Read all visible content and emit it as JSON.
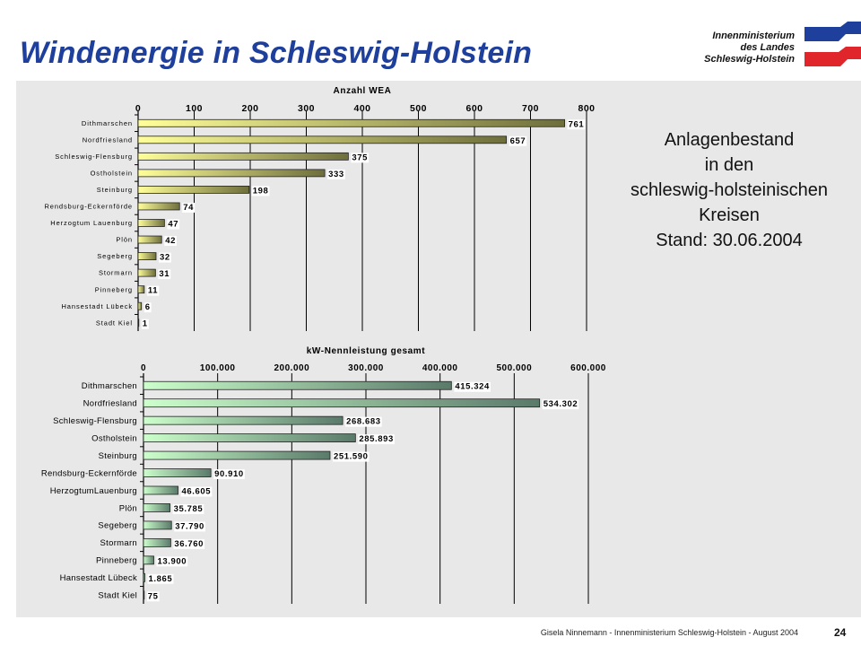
{
  "slide": {
    "title": "Windenergie in Schleswig-Holstein",
    "org_line1": "Innenministerium",
    "org_line2": "des Landes",
    "org_line3": "Schleswig-Holstein",
    "side_line1": "Anlagenbestand",
    "side_line2": "in den",
    "side_line3": "schleswig-holsteinischen",
    "side_line4": "Kreisen",
    "side_line5": "Stand: 30.06.2004",
    "footer": "Gisela Ninnemann - Innenministerium Schleswig-Holstein - August 2004",
    "page_number": "24",
    "logo_colors": {
      "blue": "#1f3f9c",
      "red": "#e0262a"
    }
  },
  "chart_data": [
    {
      "type": "bar",
      "orientation": "horizontal",
      "title": "Anzahl WEA",
      "categories": [
        "Dithmarschen",
        "Nordfriesland",
        "Schleswig-Flensburg",
        "Ostholstein",
        "Steinburg",
        "Rendsburg-Eckernförde",
        "Herzogtum Lauenburg",
        "Plön",
        "Segeberg",
        "Stormarn",
        "Pinneberg",
        "Hansestadt Lübeck",
        "Stadt Kiel"
      ],
      "values": [
        761,
        657,
        375,
        333,
        198,
        74,
        47,
        42,
        32,
        31,
        11,
        6,
        1
      ],
      "value_labels": [
        "761",
        "657",
        "375",
        "333",
        "198",
        "74",
        "47",
        "42",
        "32",
        "31",
        "11",
        "6",
        "1"
      ],
      "xlim": [
        0,
        800
      ],
      "ticks": [
        0,
        100,
        200,
        300,
        400,
        500,
        600,
        700,
        800
      ],
      "tick_labels": [
        "0",
        "100",
        "200",
        "300",
        "400",
        "500",
        "600",
        "700",
        "800"
      ],
      "axis_position": "top",
      "grid": true,
      "colors": {
        "bar_light": "#ffff99",
        "bar_dark": "#6e6e3c"
      }
    },
    {
      "type": "bar",
      "orientation": "horizontal",
      "title": "kW-Nennleistung gesamt",
      "categories": [
        "Dithmarschen",
        "Nordfriesland",
        "Schleswig-Flensburg",
        "Ostholstein",
        "Steinburg",
        "Rendsburg-Eckernförde",
        "HerzogtumLauenburg",
        "Plön",
        "Segeberg",
        "Stormarn",
        "Pinneberg",
        "Hansestadt Lübeck",
        "Stadt Kiel"
      ],
      "values": [
        415324,
        534302,
        268683,
        285893,
        251590,
        90910,
        46605,
        35785,
        37790,
        36760,
        13900,
        1865,
        75
      ],
      "value_labels": [
        "415.324",
        "534.302",
        "268.683",
        "285.893",
        "251.590",
        "90.910",
        "46.605",
        "35.785",
        "37.790",
        "36.760",
        "13.900",
        "1.865",
        "75"
      ],
      "xlim": [
        0,
        600000
      ],
      "ticks": [
        0,
        100000,
        200000,
        300000,
        400000,
        500000,
        600000
      ],
      "tick_labels": [
        "0",
        "100.000",
        "200.000",
        "300.000",
        "400.000",
        "500.000",
        "600.000"
      ],
      "axis_position": "top",
      "grid": true,
      "colors": {
        "bar_light": "#ccffcc",
        "bar_dark": "#5a7a6a"
      }
    }
  ]
}
